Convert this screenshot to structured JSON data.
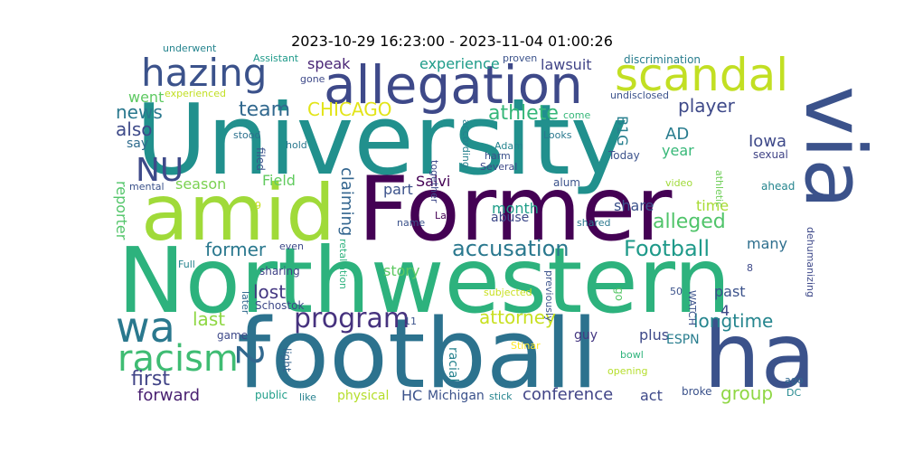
{
  "title": "2023-10-29 16:23:00 - 2023-11-04 01:00:26",
  "words": [
    {
      "text": "University",
      "color": "#21908d"
    },
    {
      "text": "Northwestern",
      "color": "#2db27d"
    },
    {
      "text": "football",
      "color": "#2c728e"
    },
    {
      "text": "Former",
      "color": "#440154"
    },
    {
      "text": "amid",
      "color": "#a0da39"
    },
    {
      "text": "via",
      "color": "#3b528b"
    },
    {
      "text": "ha",
      "color": "#3b528b"
    },
    {
      "text": "allegation",
      "color": "#3e4989"
    },
    {
      "text": "scandal",
      "color": "#c2df23"
    },
    {
      "text": "hazing",
      "color": "#3b528b"
    },
    {
      "text": "wa",
      "color": "#2a788e"
    },
    {
      "text": "racism",
      "color": "#3fbc73"
    },
    {
      "text": "NU",
      "color": "#3e4a89"
    },
    {
      "text": "2",
      "color": "#31688e"
    },
    {
      "text": "program",
      "color": "#46327e"
    },
    {
      "text": "accusation",
      "color": "#2a788e"
    },
    {
      "text": "Football",
      "color": "#1f9a8a"
    },
    {
      "text": "alleged",
      "color": "#50c46a"
    },
    {
      "text": "athlete",
      "color": "#35b779"
    },
    {
      "text": "team",
      "color": "#31688e"
    },
    {
      "text": "CHICAGO",
      "color": "#e2e418"
    },
    {
      "text": "player",
      "color": "#3e4989"
    },
    {
      "text": "news",
      "color": "#2a788e"
    },
    {
      "text": "also",
      "color": "#3e4a89"
    },
    {
      "text": "former",
      "color": "#2a788e"
    },
    {
      "text": "lost",
      "color": "#453882"
    },
    {
      "text": "last",
      "color": "#8fd744"
    },
    {
      "text": "first",
      "color": "#414487"
    },
    {
      "text": "forward",
      "color": "#481f70"
    },
    {
      "text": "group",
      "color": "#8fd744"
    },
    {
      "text": "attorney",
      "color": "#c8e020"
    },
    {
      "text": "longtime",
      "color": "#25858e"
    },
    {
      "text": "conference",
      "color": "#414487"
    },
    {
      "text": "Iowa",
      "color": "#3e4989"
    },
    {
      "text": "AD",
      "color": "#287c8e"
    },
    {
      "text": "B1G",
      "color": "#277f8e"
    },
    {
      "text": "year",
      "color": "#37b878"
    },
    {
      "text": "speak",
      "color": "#482475"
    },
    {
      "text": "experience",
      "color": "#1e9c89"
    },
    {
      "text": "lawsuit",
      "color": "#414487"
    },
    {
      "text": "went",
      "color": "#5ec962"
    },
    {
      "text": "say",
      "color": "#2f6c8e"
    },
    {
      "text": "reporter",
      "color": "#52c569"
    },
    {
      "text": "season",
      "color": "#7ad151"
    },
    {
      "text": "Field",
      "color": "#62cb5f"
    },
    {
      "text": "claiming",
      "color": "#32648e"
    },
    {
      "text": "part",
      "color": "#3b528b"
    },
    {
      "text": "month",
      "color": "#1f9e89"
    },
    {
      "text": "Salvi",
      "color": "#440154"
    },
    {
      "text": "share",
      "color": "#3b528b"
    },
    {
      "text": "time",
      "color": "#a8db34"
    },
    {
      "text": "story",
      "color": "#5ec962"
    },
    {
      "text": "past",
      "color": "#3b528b"
    },
    {
      "text": "plus",
      "color": "#3e4989"
    },
    {
      "text": "act",
      "color": "#3e4989"
    },
    {
      "text": "many",
      "color": "#2e6f8e"
    },
    {
      "text": "4",
      "color": "#3e4989"
    },
    {
      "text": "HC",
      "color": "#3b528b"
    },
    {
      "text": "Michigan",
      "color": "#3b528b"
    },
    {
      "text": "stick",
      "color": "#25848e"
    },
    {
      "text": "physical",
      "color": "#b5de2b"
    },
    {
      "text": "like",
      "color": "#26818e"
    },
    {
      "text": "public",
      "color": "#1f9e89"
    },
    {
      "text": "light",
      "color": "#33638d"
    },
    {
      "text": "game",
      "color": "#3e4989"
    },
    {
      "text": "ESPN",
      "color": "#287d8e"
    },
    {
      "text": "guy",
      "color": "#453882"
    },
    {
      "text": "racial",
      "color": "#26828e"
    },
    {
      "text": "Stinar",
      "color": "#fde725"
    },
    {
      "text": "bowl",
      "color": "#2fb47c"
    },
    {
      "text": "opening",
      "color": "#b5de2b"
    },
    {
      "text": "broke",
      "color": "#3b528b"
    },
    {
      "text": "ago",
      "color": "#31688e"
    },
    {
      "text": "DC",
      "color": "#23888e"
    },
    {
      "text": "underwent",
      "color": "#25848e"
    },
    {
      "text": "Assistant",
      "color": "#1f9a8a"
    },
    {
      "text": "proven",
      "color": "#3b528b"
    },
    {
      "text": "discrimination",
      "color": "#287d8e"
    },
    {
      "text": "experienced",
      "color": "#c2df23"
    },
    {
      "text": "gone",
      "color": "#3e4989"
    },
    {
      "text": "undisclosed",
      "color": "#3b528b"
    },
    {
      "text": "come",
      "color": "#35b779"
    },
    {
      "text": "according",
      "color": "#26818e"
    },
    {
      "text": "Adam",
      "color": "#25848e"
    },
    {
      "text": "harm",
      "color": "#3b528b"
    },
    {
      "text": "Looks",
      "color": "#2a788e"
    },
    {
      "text": "Several",
      "color": "#3e4989"
    },
    {
      "text": "Today",
      "color": "#3b528b"
    },
    {
      "text": "sexual",
      "color": "#414487"
    },
    {
      "text": "stood",
      "color": "#2c718e"
    },
    {
      "text": "hold",
      "color": "#2a788e"
    },
    {
      "text": "filed",
      "color": "#3b528b"
    },
    {
      "text": "alum",
      "color": "#3b528b"
    },
    {
      "text": "video",
      "color": "#a0da39"
    },
    {
      "text": "athletic",
      "color": "#6ece58"
    },
    {
      "text": "ahead",
      "color": "#25858e"
    },
    {
      "text": "mental",
      "color": "#3b528b"
    },
    {
      "text": "together",
      "color": "#3e4989"
    },
    {
      "text": "abuse",
      "color": "#3e4989"
    },
    {
      "text": "shared",
      "color": "#2a788e"
    },
    {
      "text": "Law",
      "color": "#440154"
    },
    {
      "text": "name",
      "color": "#3b528b"
    },
    {
      "text": "9",
      "color": "#c8e020"
    },
    {
      "text": "Full",
      "color": "#25848e"
    },
    {
      "text": "even",
      "color": "#3e4989"
    },
    {
      "text": "retaliation",
      "color": "#2db27d"
    },
    {
      "text": "sharing",
      "color": "#414487"
    },
    {
      "text": "later",
      "color": "#31688e"
    },
    {
      "text": "Schostok",
      "color": "#3e4989"
    },
    {
      "text": "subjected",
      "color": "#c8e020"
    },
    {
      "text": "previously",
      "color": "#3b528b"
    },
    {
      "text": "go",
      "color": "#56c667"
    },
    {
      "text": "50",
      "color": "#3b528b"
    },
    {
      "text": "WATCH",
      "color": "#3b528b"
    },
    {
      "text": "8",
      "color": "#3e4989"
    },
    {
      "text": "dehumanizing",
      "color": "#3e4989"
    },
    {
      "text": "11",
      "color": "#3b528b"
    }
  ]
}
